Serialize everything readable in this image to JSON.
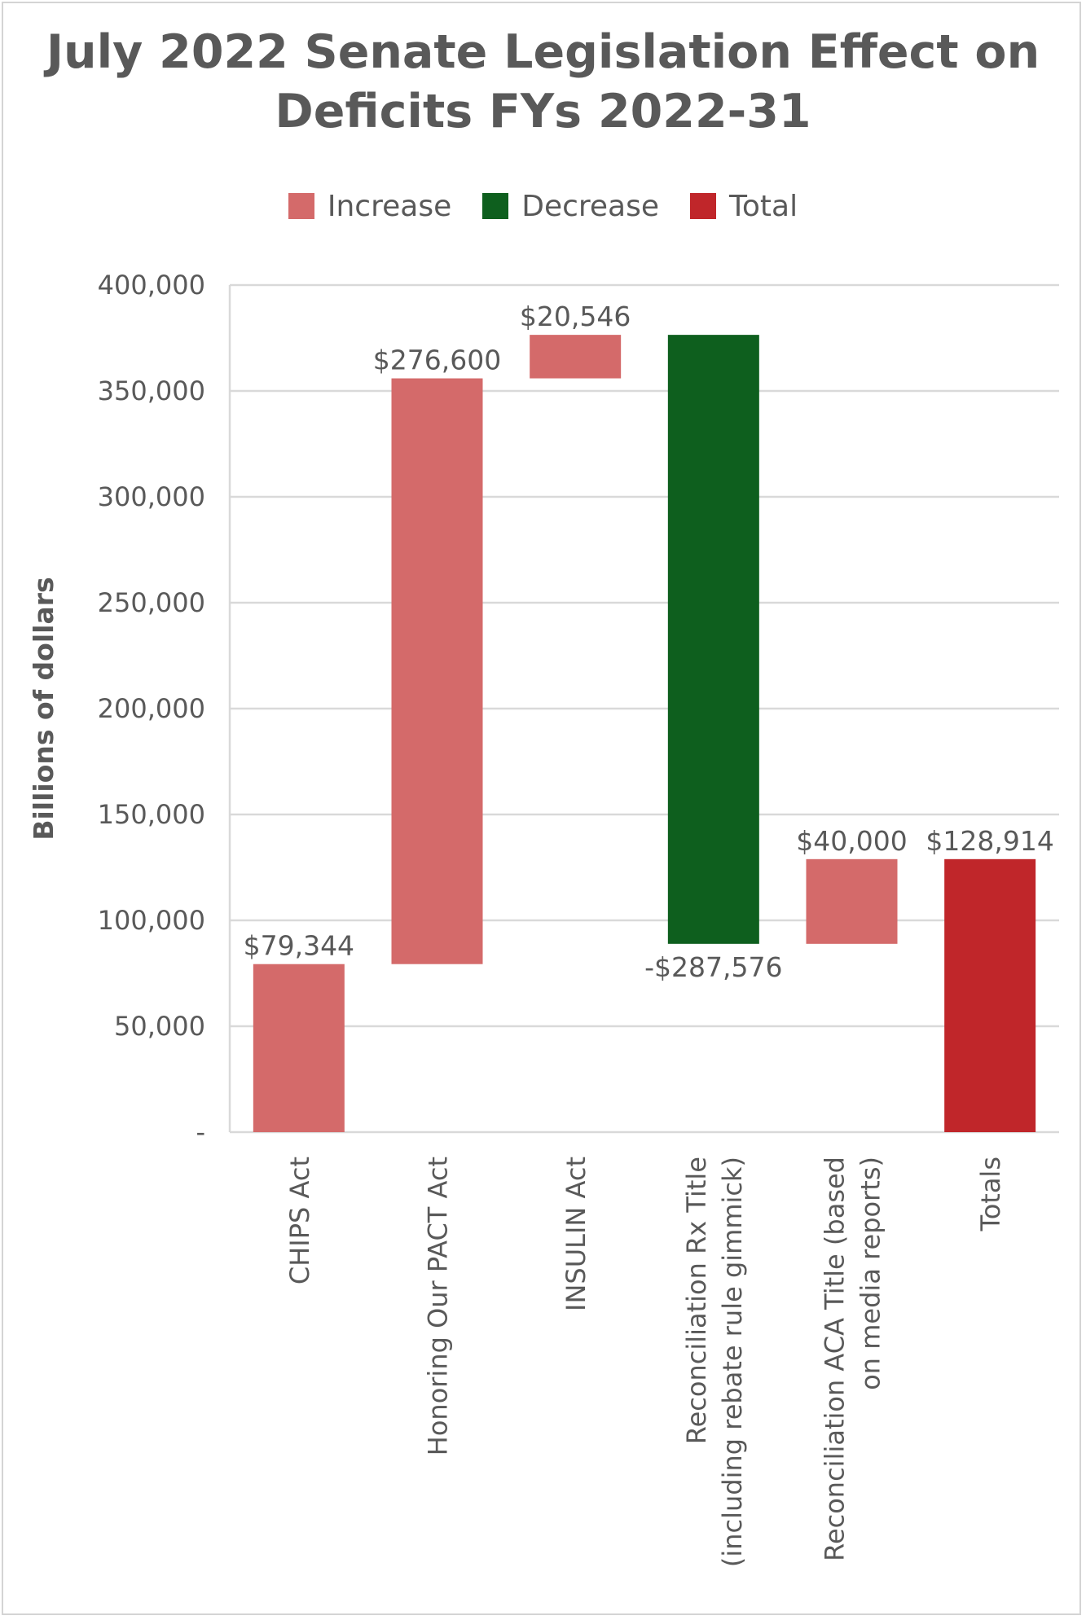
{
  "chart_data": {
    "type": "waterfall",
    "title": [
      "July 2022 Senate Legislation Effect on",
      "Deficits FYs 2022-31"
    ],
    "ylabel": "Billions of dollars",
    "xlabel": "",
    "ylim": [
      0,
      400000
    ],
    "yticks": [
      {
        "value": 0,
        "label": "-"
      },
      {
        "value": 50000,
        "label": "50,000"
      },
      {
        "value": 100000,
        "label": "100,000"
      },
      {
        "value": 150000,
        "label": "150,000"
      },
      {
        "value": 200000,
        "label": "200,000"
      },
      {
        "value": 250000,
        "label": "250,000"
      },
      {
        "value": 300000,
        "label": "300,000"
      },
      {
        "value": 350000,
        "label": "350,000"
      },
      {
        "value": 400000,
        "label": "400,000"
      }
    ],
    "grid": true,
    "legend_position": "top",
    "legend": [
      {
        "key": "increase",
        "label": "Increase",
        "color": "#d46a6a"
      },
      {
        "key": "decrease",
        "label": "Decrease",
        "color": "#0e5f1e"
      },
      {
        "key": "total",
        "label": "Total",
        "color": "#c0262a"
      }
    ],
    "bars": [
      {
        "category": [
          "CHIPS Act"
        ],
        "value": 79344,
        "kind": "increase",
        "label": "$79,344"
      },
      {
        "category": [
          "Honoring Our PACT Act"
        ],
        "value": 276600,
        "kind": "increase",
        "label": "$276,600"
      },
      {
        "category": [
          "INSULIN Act"
        ],
        "value": 20546,
        "kind": "increase",
        "label": "$20,546"
      },
      {
        "category": [
          "Reconciliation Rx Title",
          "(including rebate rule gimmick)"
        ],
        "value": -287576,
        "kind": "decrease",
        "label": "-$287,576"
      },
      {
        "category": [
          "Reconciliation ACA Title (based",
          "on media reports)"
        ],
        "value": 40000,
        "kind": "increase",
        "label": "$40,000"
      },
      {
        "category": [
          "Totals"
        ],
        "value": 128914,
        "kind": "total",
        "label": "$128,914"
      }
    ]
  }
}
